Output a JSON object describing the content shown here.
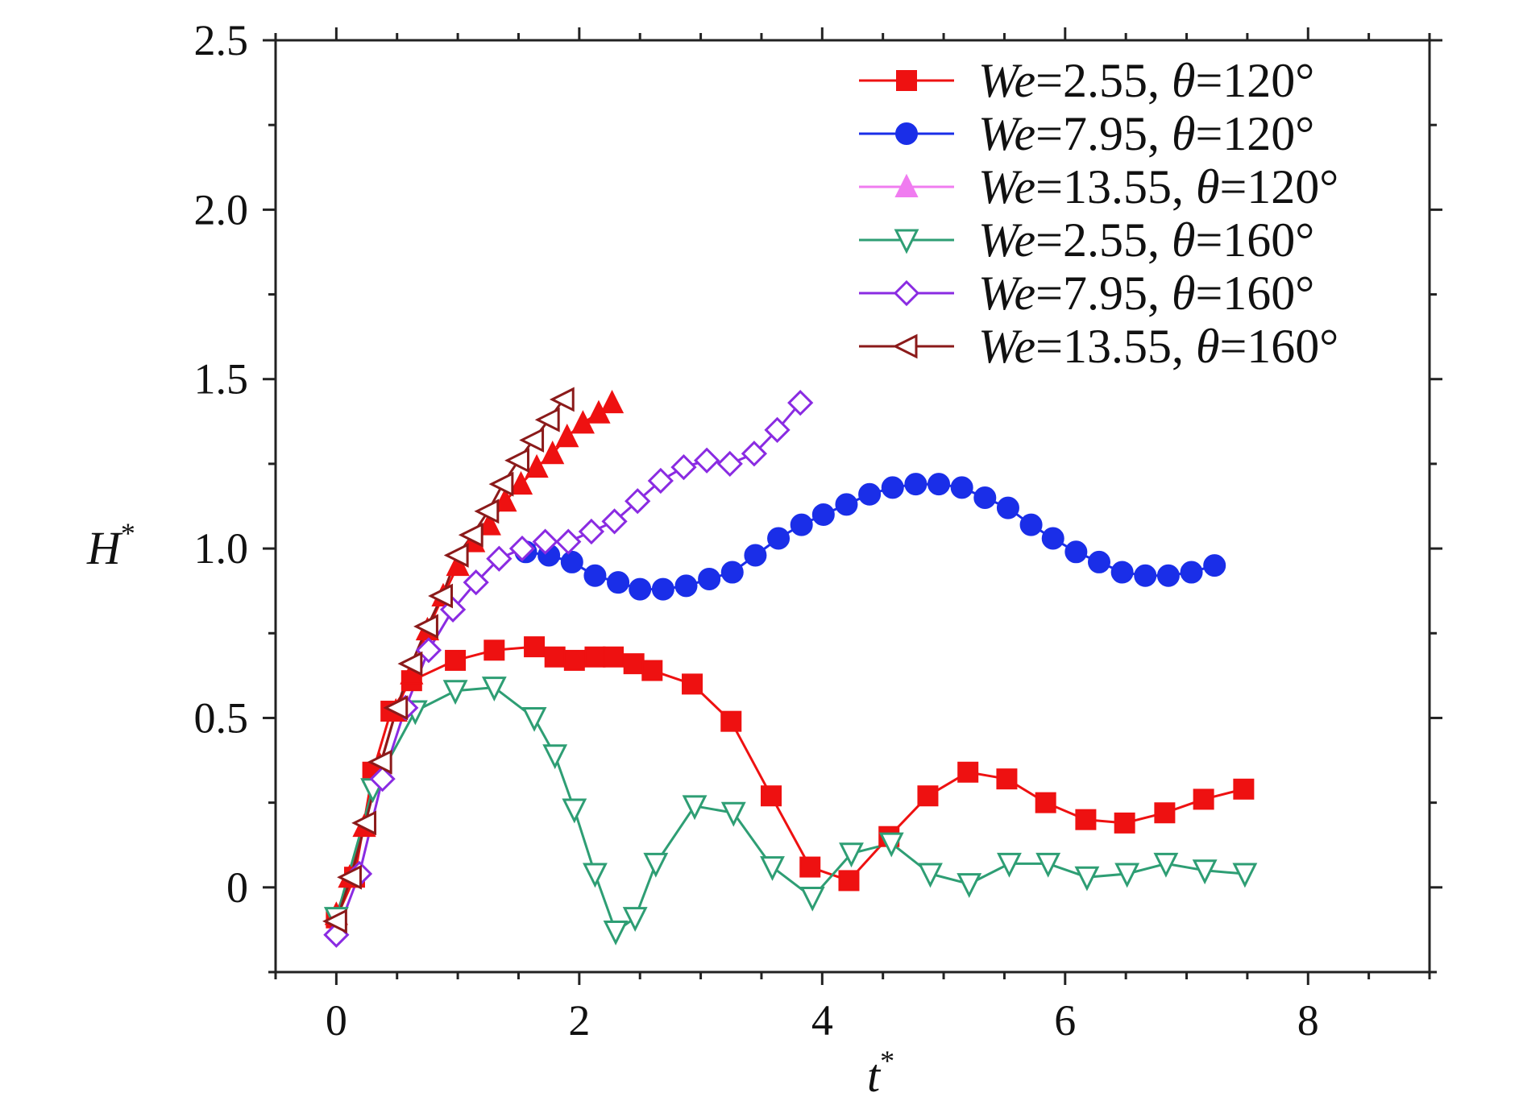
{
  "chart_data": {
    "type": "line",
    "title": "",
    "xlabel": "t",
    "xlabel_sup": "*",
    "ylabel": "H",
    "ylabel_sup": "*",
    "xlim": [
      -0.5,
      9.0
    ],
    "ylim": [
      -0.25,
      2.5
    ],
    "xticks": [
      0,
      2,
      4,
      6,
      8
    ],
    "xtick_labels": [
      "0",
      "2",
      "4",
      "6",
      "8"
    ],
    "yticks": [
      0,
      0.5,
      1.0,
      1.5,
      2.0,
      2.5
    ],
    "ytick_labels": [
      "0",
      "0.5",
      "1.0",
      "1.5",
      "2.0",
      "2.5"
    ],
    "grid": false,
    "legend_position": "top-right",
    "series": [
      {
        "name": "We=2.55, θ=120°",
        "label_parts": [
          "We",
          "=2.55, ",
          "θ",
          "=120°"
        ],
        "color": "#ee1111",
        "marker": "square-filled",
        "x": [
          0.0,
          0.15,
          0.3,
          0.45,
          0.62,
          0.98,
          1.3,
          1.63,
          1.8,
          1.96,
          2.13,
          2.28,
          2.45,
          2.6,
          2.93,
          3.25,
          3.58,
          3.9,
          4.22,
          4.55,
          4.87,
          5.2,
          5.52,
          5.84,
          6.17,
          6.49,
          6.82,
          7.14,
          7.47
        ],
        "y": [
          -0.09,
          0.03,
          0.34,
          0.52,
          0.61,
          0.67,
          0.7,
          0.71,
          0.68,
          0.67,
          0.68,
          0.68,
          0.66,
          0.64,
          0.6,
          0.49,
          0.27,
          0.06,
          0.02,
          0.15,
          0.27,
          0.34,
          0.32,
          0.25,
          0.2,
          0.19,
          0.22,
          0.26,
          0.29
        ]
      },
      {
        "name": "We=7.95, θ=120°",
        "label_parts": [
          "We",
          "=7.95, ",
          "θ",
          "=120°"
        ],
        "color": "#1a2ee8",
        "marker": "circle-filled",
        "x": [
          1.56,
          1.75,
          1.94,
          2.13,
          2.32,
          2.5,
          2.69,
          2.88,
          3.07,
          3.26,
          3.45,
          3.64,
          3.83,
          4.01,
          4.2,
          4.39,
          4.58,
          4.77,
          4.96,
          5.15,
          5.34,
          5.53,
          5.72,
          5.9,
          6.09,
          6.28,
          6.47,
          6.66,
          6.85,
          7.04,
          7.23
        ],
        "y": [
          0.99,
          0.98,
          0.96,
          0.92,
          0.9,
          0.88,
          0.88,
          0.89,
          0.91,
          0.93,
          0.98,
          1.03,
          1.07,
          1.1,
          1.13,
          1.16,
          1.18,
          1.19,
          1.19,
          1.18,
          1.15,
          1.12,
          1.07,
          1.03,
          0.99,
          0.96,
          0.93,
          0.92,
          0.92,
          0.93,
          0.95
        ]
      },
      {
        "name": "We=13.55, θ=120°",
        "label_parts": [
          "We",
          "=13.55, ",
          "θ",
          "=120°"
        ],
        "color": "#ee1111",
        "legend_color": "#f07cf0",
        "marker": "triangle-up-filled",
        "x": [
          0.0,
          0.11,
          0.23,
          0.36,
          0.49,
          0.62,
          0.75,
          0.88,
          1.0,
          1.13,
          1.26,
          1.39,
          1.52,
          1.65,
          1.78,
          1.9,
          2.03,
          2.16,
          2.27
        ],
        "y": [
          -0.08,
          0.03,
          0.18,
          0.36,
          0.52,
          0.63,
          0.76,
          0.86,
          0.95,
          1.02,
          1.07,
          1.14,
          1.19,
          1.24,
          1.28,
          1.33,
          1.37,
          1.4,
          1.43
        ]
      },
      {
        "name": "We=2.55, θ=160°",
        "label_parts": [
          "We",
          "=2.55, ",
          "θ",
          "=160°"
        ],
        "color": "#2e9e74",
        "marker": "triangle-down-open",
        "x": [
          0.0,
          0.3,
          0.65,
          0.98,
          1.3,
          1.63,
          1.8,
          1.96,
          2.13,
          2.3,
          2.46,
          2.63,
          2.95,
          3.27,
          3.59,
          3.92,
          4.24,
          4.57,
          4.89,
          5.21,
          5.54,
          5.86,
          6.18,
          6.51,
          6.83,
          7.15,
          7.48
        ],
        "y": [
          -0.09,
          0.29,
          0.52,
          0.58,
          0.59,
          0.5,
          0.39,
          0.23,
          0.04,
          -0.13,
          -0.09,
          0.07,
          0.24,
          0.22,
          0.06,
          -0.03,
          0.1,
          0.13,
          0.04,
          0.01,
          0.07,
          0.07,
          0.03,
          0.04,
          0.07,
          0.05,
          0.04
        ]
      },
      {
        "name": "We=7.95, θ=160°",
        "label_parts": [
          "We",
          "=7.95, ",
          "θ",
          "=160°"
        ],
        "color": "#8a2be2",
        "marker": "diamond-open",
        "x": [
          0.0,
          0.19,
          0.38,
          0.57,
          0.76,
          0.96,
          1.15,
          1.34,
          1.53,
          1.72,
          1.91,
          2.1,
          2.29,
          2.48,
          2.67,
          2.86,
          3.05,
          3.24,
          3.44,
          3.63,
          3.82
        ],
        "y": [
          -0.14,
          0.04,
          0.32,
          0.53,
          0.7,
          0.82,
          0.9,
          0.97,
          1.0,
          1.02,
          1.02,
          1.05,
          1.08,
          1.14,
          1.2,
          1.24,
          1.26,
          1.25,
          1.28,
          1.35,
          1.43
        ]
      },
      {
        "name": "We=13.55, θ=160°",
        "label_parts": [
          "We",
          "=13.55, ",
          "θ",
          "=160°"
        ],
        "color": "#8b1a1a",
        "marker": "triangle-left-open",
        "x": [
          0.0,
          0.12,
          0.24,
          0.37,
          0.5,
          0.62,
          0.75,
          0.87,
          1.0,
          1.12,
          1.25,
          1.37,
          1.5,
          1.62,
          1.75,
          1.87
        ],
        "y": [
          -0.1,
          0.03,
          0.19,
          0.37,
          0.53,
          0.66,
          0.77,
          0.86,
          0.98,
          1.04,
          1.11,
          1.19,
          1.26,
          1.32,
          1.38,
          1.44
        ]
      }
    ]
  }
}
